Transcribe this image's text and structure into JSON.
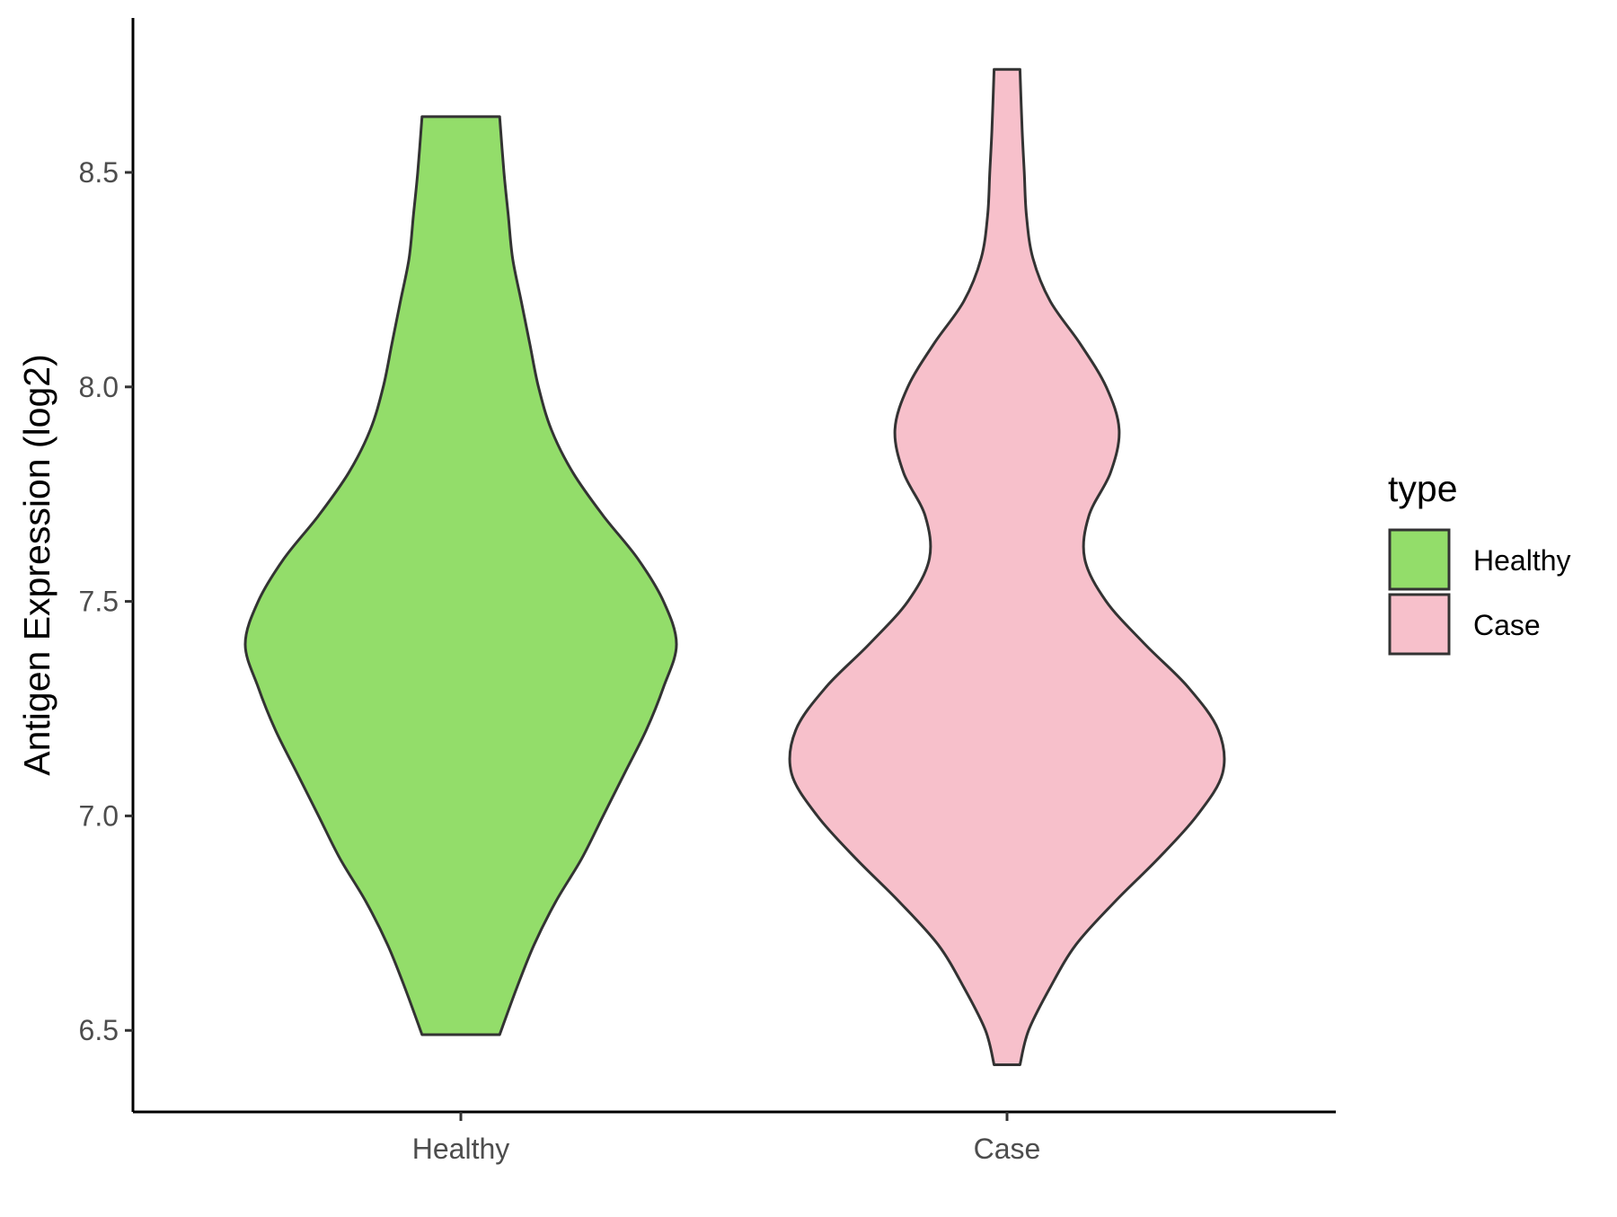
{
  "chart_data": {
    "type": "violin",
    "title": "",
    "xlabel": "",
    "ylabel": "Antigen Expression (log2)",
    "ylim": [
      6.31,
      8.86
    ],
    "yticks": [
      6.5,
      7.0,
      7.5,
      8.0,
      8.5
    ],
    "ytick_labels": [
      "6.5",
      "7.0",
      "7.5",
      "8.0",
      "8.5"
    ],
    "categories": [
      "Healthy",
      "Case"
    ],
    "grid": false,
    "legend": {
      "title": "type",
      "position": "right",
      "entries": [
        "Healthy",
        "Case"
      ]
    },
    "series": [
      {
        "name": "Healthy",
        "color": "#93DD6A",
        "min": 6.49,
        "max": 8.63,
        "density_profile": [
          {
            "y": 6.49,
            "half_width": 0.09
          },
          {
            "y": 6.6,
            "half_width": 0.13
          },
          {
            "y": 6.7,
            "half_width": 0.17
          },
          {
            "y": 6.8,
            "half_width": 0.22
          },
          {
            "y": 6.9,
            "half_width": 0.28
          },
          {
            "y": 7.0,
            "half_width": 0.33
          },
          {
            "y": 7.1,
            "half_width": 0.38
          },
          {
            "y": 7.2,
            "half_width": 0.43
          },
          {
            "y": 7.3,
            "half_width": 0.47
          },
          {
            "y": 7.4,
            "half_width": 0.5
          },
          {
            "y": 7.5,
            "half_width": 0.47
          },
          {
            "y": 7.6,
            "half_width": 0.41
          },
          {
            "y": 7.7,
            "half_width": 0.33
          },
          {
            "y": 7.8,
            "half_width": 0.26
          },
          {
            "y": 7.9,
            "half_width": 0.21
          },
          {
            "y": 8.0,
            "half_width": 0.18
          },
          {
            "y": 8.1,
            "half_width": 0.16
          },
          {
            "y": 8.2,
            "half_width": 0.14
          },
          {
            "y": 8.3,
            "half_width": 0.12
          },
          {
            "y": 8.4,
            "half_width": 0.11
          },
          {
            "y": 8.5,
            "half_width": 0.1
          },
          {
            "y": 8.63,
            "half_width": 0.09
          }
        ]
      },
      {
        "name": "Case",
        "color": "#F7C0CB",
        "min": 6.42,
        "max": 8.74,
        "density_profile": [
          {
            "y": 6.42,
            "half_width": 0.03
          },
          {
            "y": 6.5,
            "half_width": 0.05
          },
          {
            "y": 6.6,
            "half_width": 0.1
          },
          {
            "y": 6.7,
            "half_width": 0.16
          },
          {
            "y": 6.8,
            "half_width": 0.25
          },
          {
            "y": 6.9,
            "half_width": 0.35
          },
          {
            "y": 7.0,
            "half_width": 0.44
          },
          {
            "y": 7.1,
            "half_width": 0.5
          },
          {
            "y": 7.2,
            "half_width": 0.49
          },
          {
            "y": 7.3,
            "half_width": 0.42
          },
          {
            "y": 7.4,
            "half_width": 0.32
          },
          {
            "y": 7.5,
            "half_width": 0.23
          },
          {
            "y": 7.6,
            "half_width": 0.18
          },
          {
            "y": 7.7,
            "half_width": 0.19
          },
          {
            "y": 7.8,
            "half_width": 0.24
          },
          {
            "y": 7.9,
            "half_width": 0.26
          },
          {
            "y": 8.0,
            "half_width": 0.23
          },
          {
            "y": 8.1,
            "half_width": 0.17
          },
          {
            "y": 8.2,
            "half_width": 0.1
          },
          {
            "y": 8.3,
            "half_width": 0.06
          },
          {
            "y": 8.4,
            "half_width": 0.045
          },
          {
            "y": 8.5,
            "half_width": 0.04
          },
          {
            "y": 8.6,
            "half_width": 0.035
          },
          {
            "y": 8.74,
            "half_width": 0.03
          }
        ]
      }
    ]
  }
}
